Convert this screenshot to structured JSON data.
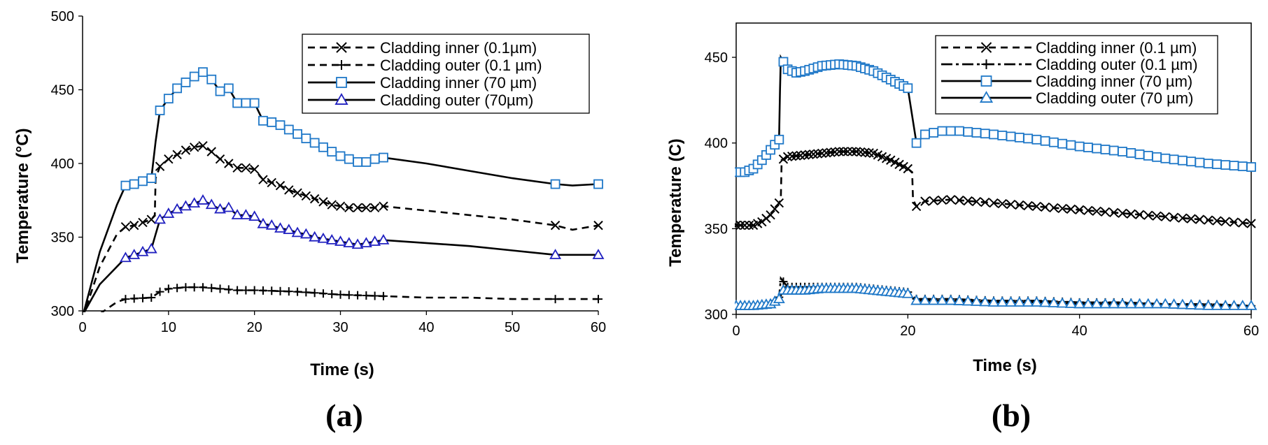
{
  "chart_data": [
    {
      "panel": "(a)",
      "type": "line",
      "xlabel": "Time (s)",
      "ylabel": "Temperature (°C)",
      "xlim": [
        0,
        60
      ],
      "ylim": [
        300,
        500
      ],
      "xticks": [
        "0",
        "10",
        "20",
        "30",
        "40",
        "50",
        "60"
      ],
      "yticks": [
        "300",
        "350",
        "400",
        "450",
        "500"
      ],
      "grid": false,
      "box": false,
      "legend_position": "top-right",
      "series": [
        {
          "name": "Cladding inner (0.1µm)",
          "style": "dashed",
          "marker": "x",
          "color": "#000000",
          "marker_color": "#000000",
          "x": [
            0,
            2,
            4,
            5,
            6,
            7,
            8,
            8.4,
            8.5,
            9,
            10,
            11,
            12,
            13,
            14,
            15,
            16,
            17,
            18,
            19,
            20,
            21,
            22,
            23,
            24,
            25,
            26,
            27,
            28,
            29,
            30,
            31,
            32,
            33,
            34,
            35,
            40,
            45,
            50,
            55,
            57,
            60
          ],
          "y": [
            295,
            330,
            352,
            357,
            358,
            360,
            362,
            365,
            390,
            398,
            403,
            406,
            409,
            411,
            412,
            408,
            403,
            400,
            397,
            397,
            396,
            389,
            387,
            385,
            382,
            380,
            378,
            376,
            374,
            372,
            371,
            370,
            370,
            370,
            370,
            371,
            368,
            365,
            362,
            358,
            355,
            358
          ],
          "marker_x": [
            5,
            6,
            7,
            8,
            9,
            10,
            11,
            12,
            13,
            14,
            15,
            16,
            17,
            18,
            19,
            20,
            21,
            22,
            23,
            24,
            25,
            26,
            27,
            28,
            29,
            30,
            31,
            32,
            33,
            34,
            35,
            55,
            60
          ]
        },
        {
          "name": "Cladding outer (0.1 µm)",
          "style": "dashed",
          "marker": "+",
          "color": "#000000",
          "marker_color": "#000000",
          "x": [
            2,
            4,
            5,
            8,
            9,
            10,
            12,
            14,
            16,
            18,
            20,
            25,
            30,
            35,
            40,
            45,
            50,
            55,
            60
          ],
          "y": [
            298,
            306,
            308,
            309,
            313,
            315,
            316,
            316,
            315,
            314,
            314,
            313,
            311,
            310,
            309,
            309,
            308,
            308,
            308
          ],
          "marker_x": [
            5,
            6,
            7,
            8,
            9,
            10,
            11,
            12,
            13,
            14,
            15,
            16,
            17,
            18,
            19,
            20,
            21,
            22,
            23,
            24,
            25,
            26,
            27,
            28,
            29,
            30,
            31,
            32,
            33,
            34,
            35,
            55,
            60
          ]
        },
        {
          "name": "Cladding inner (70 µm)",
          "style": "solid",
          "marker": "square",
          "color": "#000000",
          "marker_color": "#1f78c8",
          "x": [
            0,
            2,
            4,
            5,
            6,
            7,
            8,
            8.5,
            9,
            10,
            11,
            12,
            13,
            14,
            15,
            16,
            17,
            18,
            19,
            20,
            21,
            22,
            23,
            24,
            25,
            26,
            27,
            28,
            29,
            30,
            31,
            32,
            33,
            34,
            35,
            40,
            45,
            50,
            55,
            57,
            60
          ],
          "y": [
            296,
            340,
            372,
            385,
            386,
            388,
            390,
            415,
            436,
            444,
            451,
            455,
            459,
            462,
            457,
            449,
            451,
            441,
            441,
            441,
            429,
            428,
            426,
            423,
            420,
            417,
            414,
            411,
            408,
            405,
            403,
            401,
            401,
            403,
            404,
            400,
            395,
            390,
            386,
            385,
            386
          ],
          "marker_x": [
            5,
            6,
            7,
            8,
            9,
            10,
            11,
            12,
            13,
            14,
            15,
            16,
            17,
            18,
            19,
            20,
            21,
            22,
            23,
            24,
            25,
            26,
            27,
            28,
            29,
            30,
            31,
            32,
            33,
            34,
            35,
            55,
            60
          ]
        },
        {
          "name": "Cladding outer (70µm)",
          "style": "solid",
          "marker": "triangle",
          "color": "#000000",
          "marker_color": "#2020c0",
          "x": [
            0,
            2,
            4,
            5,
            6,
            7,
            8,
            8.5,
            9,
            10,
            11,
            12,
            13,
            14,
            15,
            16,
            17,
            18,
            19,
            20,
            21,
            22,
            23,
            24,
            25,
            26,
            27,
            28,
            29,
            30,
            31,
            32,
            33,
            34,
            35,
            40,
            45,
            50,
            55,
            60
          ],
          "y": [
            297,
            318,
            330,
            336,
            338,
            340,
            342,
            352,
            362,
            366,
            369,
            371,
            373,
            375,
            372,
            369,
            370,
            365,
            365,
            364,
            359,
            358,
            356,
            355,
            353,
            352,
            350,
            349,
            348,
            347,
            346,
            345,
            346,
            347,
            348,
            346,
            344,
            341,
            338,
            338
          ],
          "marker_x": [
            5,
            6,
            7,
            8,
            9,
            10,
            11,
            12,
            13,
            14,
            15,
            16,
            17,
            18,
            19,
            20,
            21,
            22,
            23,
            24,
            25,
            26,
            27,
            28,
            29,
            30,
            31,
            32,
            33,
            34,
            35,
            55,
            60
          ]
        }
      ]
    },
    {
      "panel": "(b)",
      "type": "line",
      "xlabel": "Time (s)",
      "ylabel": "Temperature (C)",
      "xlim": [
        0,
        60
      ],
      "ylim": [
        300,
        470
      ],
      "xticks": [
        "0",
        "20",
        "40",
        "60"
      ],
      "yticks": [
        "300",
        "350",
        "400",
        "450"
      ],
      "grid": false,
      "box": true,
      "legend_position": "top-right",
      "series": [
        {
          "name": "Cladding inner (0.1 µm)",
          "style": "dashed",
          "marker": "x",
          "color": "#000000",
          "marker_color": "#000000",
          "x": [
            0,
            2,
            3,
            4,
            5,
            5.2,
            5.3,
            6,
            8,
            10,
            12,
            14,
            16,
            18,
            20,
            20.5,
            20.6,
            21,
            22,
            25,
            30,
            35,
            40,
            45,
            50,
            55,
            60
          ],
          "y": [
            352,
            352,
            354,
            358,
            365,
            367,
            390,
            392,
            393,
            394,
            395,
            395,
            394,
            390,
            385,
            383,
            367,
            363,
            366,
            367,
            365,
            363,
            361,
            359,
            357,
            355,
            353
          ],
          "marker_x": [
            0,
            0.5,
            1,
            1.5,
            2,
            2.5,
            3,
            3.5,
            4,
            4.5,
            5,
            5.5,
            6,
            6.5,
            7,
            7.5,
            8,
            8.5,
            9,
            9.5,
            10,
            10.5,
            11,
            11.5,
            12,
            12.5,
            13,
            13.5,
            14,
            14.5,
            15,
            15.5,
            16,
            16.5,
            17,
            17.5,
            18,
            18.5,
            19,
            19.5,
            20,
            21,
            22,
            23,
            24,
            25,
            26,
            27,
            28,
            29,
            30,
            31,
            32,
            33,
            34,
            35,
            36,
            37,
            38,
            39,
            40,
            41,
            42,
            43,
            44,
            45,
            46,
            47,
            48,
            49,
            50,
            51,
            52,
            53,
            54,
            55,
            56,
            57,
            58,
            59,
            60
          ]
        },
        {
          "name": "Cladding outer (0.1 µm)",
          "style": "dash-dot",
          "marker": "+",
          "color": "#000000",
          "marker_color": "#000000",
          "x": [
            0,
            2,
            4,
            5,
            5.2,
            6,
            8,
            10,
            12,
            14,
            16,
            18,
            20,
            21,
            25,
            30,
            35,
            40,
            45,
            50,
            55,
            60
          ],
          "y": [
            305,
            305,
            306,
            310,
            321,
            316,
            316,
            316,
            316,
            316,
            315,
            314,
            313,
            309,
            309,
            308,
            308,
            307,
            307,
            306,
            306,
            305
          ],
          "marker_x": [
            0,
            0.5,
            1,
            1.5,
            2,
            2.5,
            3,
            3.5,
            4,
            4.5,
            5,
            5.5,
            6,
            6.5,
            7,
            7.5,
            8,
            8.5,
            9,
            9.5,
            10,
            10.5,
            11,
            11.5,
            12,
            12.5,
            13,
            13.5,
            14,
            14.5,
            15,
            15.5,
            16,
            16.5,
            17,
            17.5,
            18,
            18.5,
            19,
            19.5,
            20,
            21,
            22,
            23,
            24,
            25,
            26,
            27,
            28,
            29,
            30,
            31,
            32,
            33,
            34,
            35,
            36,
            37,
            38,
            39,
            40,
            41,
            42,
            43,
            44,
            45,
            46,
            47,
            48,
            49,
            50,
            51,
            52,
            53,
            54,
            55,
            56,
            57,
            58,
            59,
            60
          ]
        },
        {
          "name": "Cladding inner (70 µm)",
          "style": "solid",
          "marker": "square",
          "color": "#000000",
          "marker_color": "#1f78c8",
          "x": [
            0,
            1,
            2,
            3,
            4,
            5,
            5.1,
            5.2,
            6,
            7,
            8,
            10,
            12,
            14,
            16,
            18,
            20,
            21,
            22,
            24,
            26,
            28,
            30,
            35,
            40,
            45,
            50,
            55,
            60
          ],
          "y": [
            383,
            383,
            385,
            390,
            396,
            402,
            430,
            450,
            443,
            441,
            442,
            445,
            446,
            445,
            442,
            437,
            432,
            400,
            405,
            407,
            407,
            406,
            405,
            402,
            398,
            395,
            391,
            388,
            386
          ],
          "marker_x": [
            0,
            0.5,
            1,
            1.5,
            2,
            2.5,
            3,
            3.5,
            4,
            4.5,
            5,
            5.5,
            6,
            6.5,
            7,
            7.5,
            8,
            8.5,
            9,
            9.5,
            10,
            10.5,
            11,
            11.5,
            12,
            12.5,
            13,
            13.5,
            14,
            14.5,
            15,
            15.5,
            16,
            16.5,
            17,
            17.5,
            18,
            18.5,
            19,
            19.5,
            20,
            21,
            22,
            23,
            24,
            25,
            26,
            27,
            28,
            29,
            30,
            31,
            32,
            33,
            34,
            35,
            36,
            37,
            38,
            39,
            40,
            41,
            42,
            43,
            44,
            45,
            46,
            47,
            48,
            49,
            50,
            51,
            52,
            53,
            54,
            55,
            56,
            57,
            58,
            59,
            60
          ]
        },
        {
          "name": "Cladding outer (70 µm)",
          "style": "solid",
          "marker": "triangle",
          "color": "#000000",
          "marker_color": "#1f78c8",
          "x": [
            0,
            2,
            4,
            5,
            5.5,
            6,
            8,
            10,
            12,
            14,
            16,
            18,
            20,
            21,
            25,
            30,
            35,
            40,
            45,
            50,
            55,
            60
          ],
          "y": [
            305,
            305,
            306,
            309,
            314,
            314,
            314,
            315,
            315,
            315,
            314,
            313,
            312,
            308,
            308,
            307,
            307,
            306,
            306,
            306,
            305,
            305
          ],
          "marker_x": [
            0,
            0.5,
            1,
            1.5,
            2,
            2.5,
            3,
            3.5,
            4,
            4.5,
            5,
            5.5,
            6,
            6.5,
            7,
            7.5,
            8,
            8.5,
            9,
            9.5,
            10,
            10.5,
            11,
            11.5,
            12,
            12.5,
            13,
            13.5,
            14,
            14.5,
            15,
            15.5,
            16,
            16.5,
            17,
            17.5,
            18,
            18.5,
            19,
            19.5,
            20,
            21,
            22,
            23,
            24,
            25,
            26,
            27,
            28,
            29,
            30,
            31,
            32,
            33,
            34,
            35,
            36,
            37,
            38,
            39,
            40,
            41,
            42,
            43,
            44,
            45,
            46,
            47,
            48,
            49,
            50,
            51,
            52,
            53,
            54,
            55,
            56,
            57,
            58,
            59,
            60
          ]
        }
      ]
    }
  ]
}
